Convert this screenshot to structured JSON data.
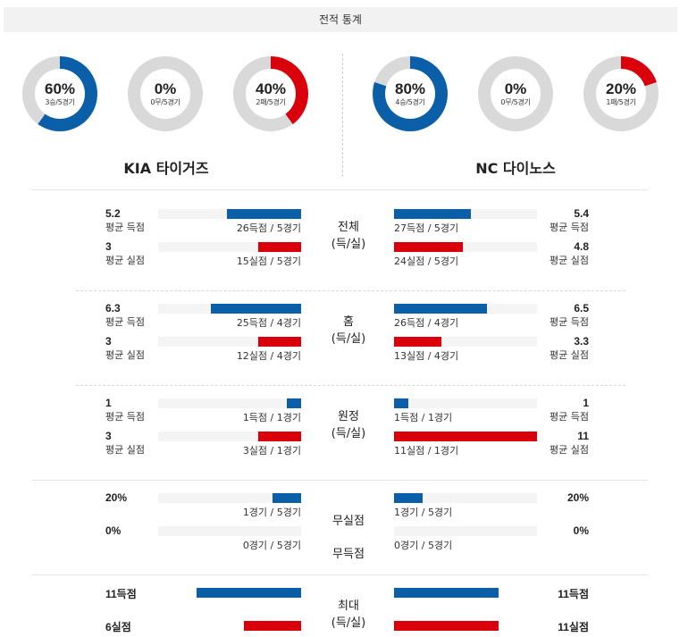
{
  "header": {
    "title": "전적 통계"
  },
  "colors": {
    "blue": "#0b5ea8",
    "red": "#d9000c",
    "gray": "#d9d9d9"
  },
  "teams": {
    "left": {
      "name": "KIA 타이거즈",
      "donuts": [
        {
          "pct_value": 60,
          "pct": "60%",
          "sub": "3승/5경기",
          "color": "#0b5ea8"
        },
        {
          "pct_value": 0,
          "pct": "0%",
          "sub": "0무/5경기",
          "color": "#0b5ea8"
        },
        {
          "pct_value": 40,
          "pct": "40%",
          "sub": "2패/5경기",
          "color": "#d9000c"
        }
      ]
    },
    "right": {
      "name": "NC 다이노스",
      "donuts": [
        {
          "pct_value": 80,
          "pct": "80%",
          "sub": "4승/5경기",
          "color": "#0b5ea8"
        },
        {
          "pct_value": 0,
          "pct": "0%",
          "sub": "0무/5경기",
          "color": "#0b5ea8"
        },
        {
          "pct_value": 20,
          "pct": "20%",
          "sub": "1패/5경기",
          "color": "#d9000c"
        }
      ]
    }
  },
  "sections": [
    {
      "title1": "전체",
      "title2": "(득/실)",
      "rows": [
        {
          "l_val": "5.2",
          "l_lbl": "평균 득점",
          "l_cap": "26득점 / 5경기",
          "l_frac": 0.52,
          "r_val": "5.4",
          "r_lbl": "평균 득점",
          "r_cap": "27득점 / 5경기",
          "r_frac": 0.54,
          "color": "#0b5ea8"
        },
        {
          "l_val": "3",
          "l_lbl": "평균 실점",
          "l_cap": "15실점 / 5경기",
          "l_frac": 0.3,
          "r_val": "4.8",
          "r_lbl": "평균 실점",
          "r_cap": "24실점 / 5경기",
          "r_frac": 0.48,
          "color": "#d9000c"
        }
      ]
    },
    {
      "title1": "홈",
      "title2": "(득/실)",
      "rows": [
        {
          "l_val": "6.3",
          "l_lbl": "평균 득점",
          "l_cap": "25득점 / 4경기",
          "l_frac": 0.63,
          "r_val": "6.5",
          "r_lbl": "평균 득점",
          "r_cap": "26득점 / 4경기",
          "r_frac": 0.65,
          "color": "#0b5ea8"
        },
        {
          "l_val": "3",
          "l_lbl": "평균 실점",
          "l_cap": "12실점 / 4경기",
          "l_frac": 0.3,
          "r_val": "3.3",
          "r_lbl": "평균 실점",
          "r_cap": "13실점 / 4경기",
          "r_frac": 0.33,
          "color": "#d9000c"
        }
      ]
    },
    {
      "title1": "원정",
      "title2": "(득/실)",
      "rows": [
        {
          "l_val": "1",
          "l_lbl": "평균 득점",
          "l_cap": "1득점 / 1경기",
          "l_frac": 0.1,
          "r_val": "1",
          "r_lbl": "평균 득점",
          "r_cap": "1득점 / 1경기",
          "r_frac": 0.1,
          "color": "#0b5ea8"
        },
        {
          "l_val": "3",
          "l_lbl": "평균 실점",
          "l_cap": "3실점 / 1경기",
          "l_frac": 0.3,
          "r_val": "11",
          "r_lbl": "평균 실점",
          "r_cap": "11실점 / 1경기",
          "r_frac": 1.0,
          "color": "#d9000c"
        }
      ]
    },
    {
      "title1": "무실점",
      "title2": "무득점",
      "rows": [
        {
          "l_val": "20%",
          "l_cap": "1경기 / 5경기",
          "l_frac": 0.2,
          "r_val": "20%",
          "r_cap": "1경기 / 5경기",
          "r_frac": 0.2,
          "color": "#0b5ea8"
        },
        {
          "l_val": "0%",
          "l_cap": "0경기 / 5경기",
          "l_frac": 0.0,
          "r_val": "0%",
          "r_cap": "0경기 / 5경기",
          "r_frac": 0.0,
          "color": "#d9000c"
        }
      ]
    },
    {
      "title1": "최대",
      "title2": "(득/실)",
      "rows": [
        {
          "l_val": "11득점",
          "l_frac": 0.73,
          "r_val": "11득점",
          "r_frac": 0.73,
          "color": "#0b5ea8"
        },
        {
          "l_val": "6실점",
          "l_frac": 0.4,
          "r_val": "11실점",
          "r_frac": 0.73,
          "color": "#d9000c"
        }
      ]
    }
  ]
}
